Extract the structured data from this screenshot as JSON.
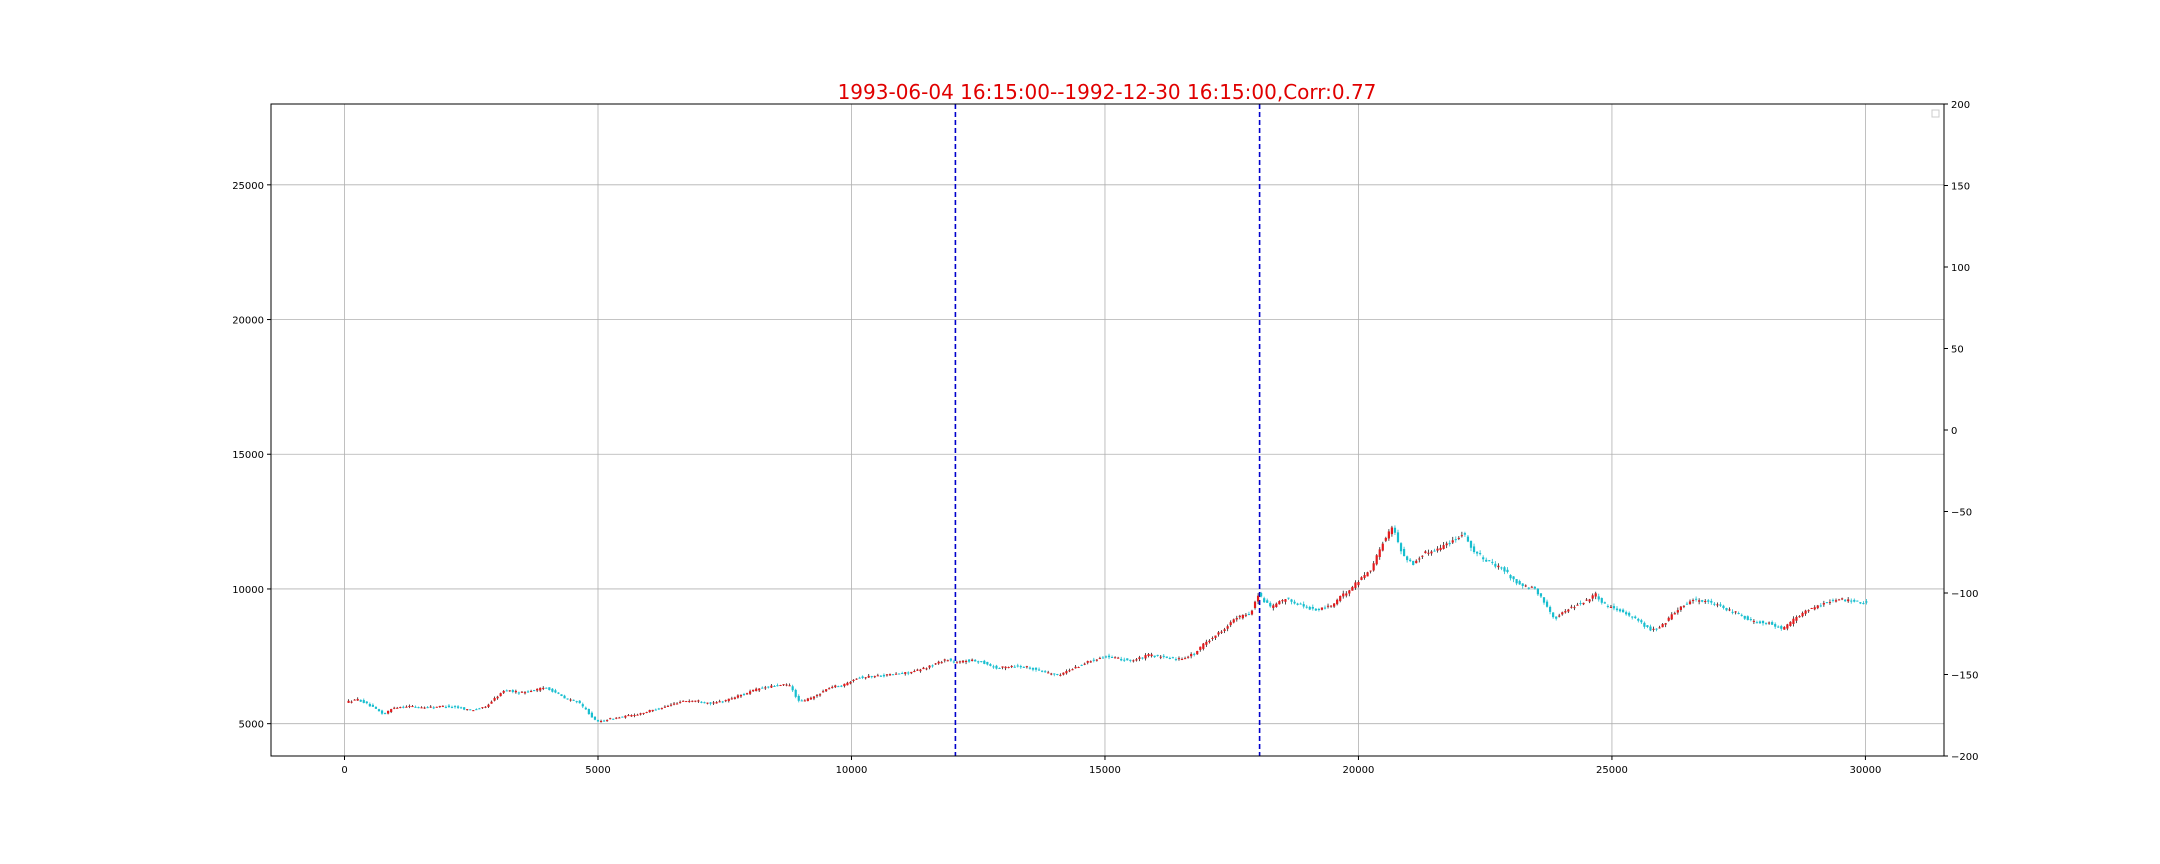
{
  "chart_data": {
    "type": "candlestick",
    "title": "1993-06-04 16:15:00--1992-12-30 16:15:00,Corr:0.77",
    "xlabel": "",
    "ylabel": "",
    "xlim": [
      -1450,
      31550
    ],
    "ylim": [
      3800,
      28000
    ],
    "ylim_right": [
      -200,
      200
    ],
    "x_ticks": [
      0,
      5000,
      10000,
      15000,
      20000,
      25000,
      30000
    ],
    "x_tick_labels": [
      "0",
      "5000",
      "10000",
      "15000",
      "20000",
      "25000",
      "30000"
    ],
    "y_ticks": [
      5000,
      10000,
      15000,
      20000,
      25000
    ],
    "y_tick_labels": [
      "5000",
      "10000",
      "15000",
      "20000",
      "25000"
    ],
    "y_right_ticks": [
      200,
      150,
      100,
      50,
      0,
      -50,
      -100,
      -150,
      -200
    ],
    "y_right_tick_labels": [
      "200",
      "150",
      "100",
      "50",
      "0",
      "−50",
      "−100",
      "−150",
      "−200"
    ],
    "grid": true,
    "legend": "top-right, empty",
    "vlines": [
      12050,
      18050
    ],
    "up_color": "#e31a1c",
    "down_color": "#17becf",
    "vline_color": "#0000cc",
    "title_color": "#e00000",
    "price_path": [
      [
        50,
        5800
      ],
      [
        300,
        5900
      ],
      [
        500,
        5700
      ],
      [
        800,
        5350
      ],
      [
        1000,
        5600
      ],
      [
        1300,
        5650
      ],
      [
        1600,
        5600
      ],
      [
        2000,
        5650
      ],
      [
        2300,
        5600
      ],
      [
        2500,
        5500
      ],
      [
        2800,
        5600
      ],
      [
        3000,
        5950
      ],
      [
        3200,
        6250
      ],
      [
        3500,
        6150
      ],
      [
        3800,
        6250
      ],
      [
        4000,
        6350
      ],
      [
        4200,
        6150
      ],
      [
        4400,
        5900
      ],
      [
        4600,
        5850
      ],
      [
        4800,
        5500
      ],
      [
        5000,
        5050
      ],
      [
        5200,
        5150
      ],
      [
        5500,
        5250
      ],
      [
        5800,
        5350
      ],
      [
        6100,
        5500
      ],
      [
        6400,
        5650
      ],
      [
        6700,
        5850
      ],
      [
        7000,
        5850
      ],
      [
        7300,
        5750
      ],
      [
        7600,
        5900
      ],
      [
        7900,
        6100
      ],
      [
        8200,
        6300
      ],
      [
        8500,
        6400
      ],
      [
        8800,
        6450
      ],
      [
        9000,
        5800
      ],
      [
        9300,
        6000
      ],
      [
        9600,
        6350
      ],
      [
        9900,
        6450
      ],
      [
        10100,
        6700
      ],
      [
        10400,
        6750
      ],
      [
        10700,
        6800
      ],
      [
        11000,
        6850
      ],
      [
        11300,
        6950
      ],
      [
        11600,
        7150
      ],
      [
        11900,
        7400
      ],
      [
        12100,
        7250
      ],
      [
        12300,
        7350
      ],
      [
        12600,
        7300
      ],
      [
        12900,
        7050
      ],
      [
        13200,
        7150
      ],
      [
        13500,
        7100
      ],
      [
        13800,
        6950
      ],
      [
        14100,
        6800
      ],
      [
        14400,
        7050
      ],
      [
        14700,
        7300
      ],
      [
        15000,
        7500
      ],
      [
        15300,
        7400
      ],
      [
        15600,
        7350
      ],
      [
        15900,
        7550
      ],
      [
        16200,
        7450
      ],
      [
        16500,
        7400
      ],
      [
        16800,
        7600
      ],
      [
        17000,
        8000
      ],
      [
        17300,
        8400
      ],
      [
        17600,
        8900
      ],
      [
        17900,
        9100
      ],
      [
        18050,
        9800
      ],
      [
        18300,
        9300
      ],
      [
        18600,
        9650
      ],
      [
        18900,
        9400
      ],
      [
        19200,
        9200
      ],
      [
        19500,
        9400
      ],
      [
        19800,
        9900
      ],
      [
        20000,
        10250
      ],
      [
        20300,
        10800
      ],
      [
        20500,
        11700
      ],
      [
        20700,
        12300
      ],
      [
        20900,
        11300
      ],
      [
        21100,
        10900
      ],
      [
        21300,
        11300
      ],
      [
        21600,
        11500
      ],
      [
        21900,
        11800
      ],
      [
        22100,
        12100
      ],
      [
        22300,
        11400
      ],
      [
        22600,
        11000
      ],
      [
        22900,
        10700
      ],
      [
        23200,
        10150
      ],
      [
        23500,
        10000
      ],
      [
        23700,
        9500
      ],
      [
        23900,
        8900
      ],
      [
        24200,
        9300
      ],
      [
        24500,
        9550
      ],
      [
        24700,
        9800
      ],
      [
        24900,
        9400
      ],
      [
        25200,
        9200
      ],
      [
        25500,
        8900
      ],
      [
        25800,
        8450
      ],
      [
        26000,
        8600
      ],
      [
        26300,
        9200
      ],
      [
        26600,
        9600
      ],
      [
        26900,
        9550
      ],
      [
        27200,
        9300
      ],
      [
        27500,
        9100
      ],
      [
        27800,
        8800
      ],
      [
        28100,
        8750
      ],
      [
        28400,
        8500
      ],
      [
        28700,
        9000
      ],
      [
        29000,
        9300
      ],
      [
        29300,
        9550
      ],
      [
        29600,
        9600
      ],
      [
        30000,
        9500
      ]
    ]
  }
}
